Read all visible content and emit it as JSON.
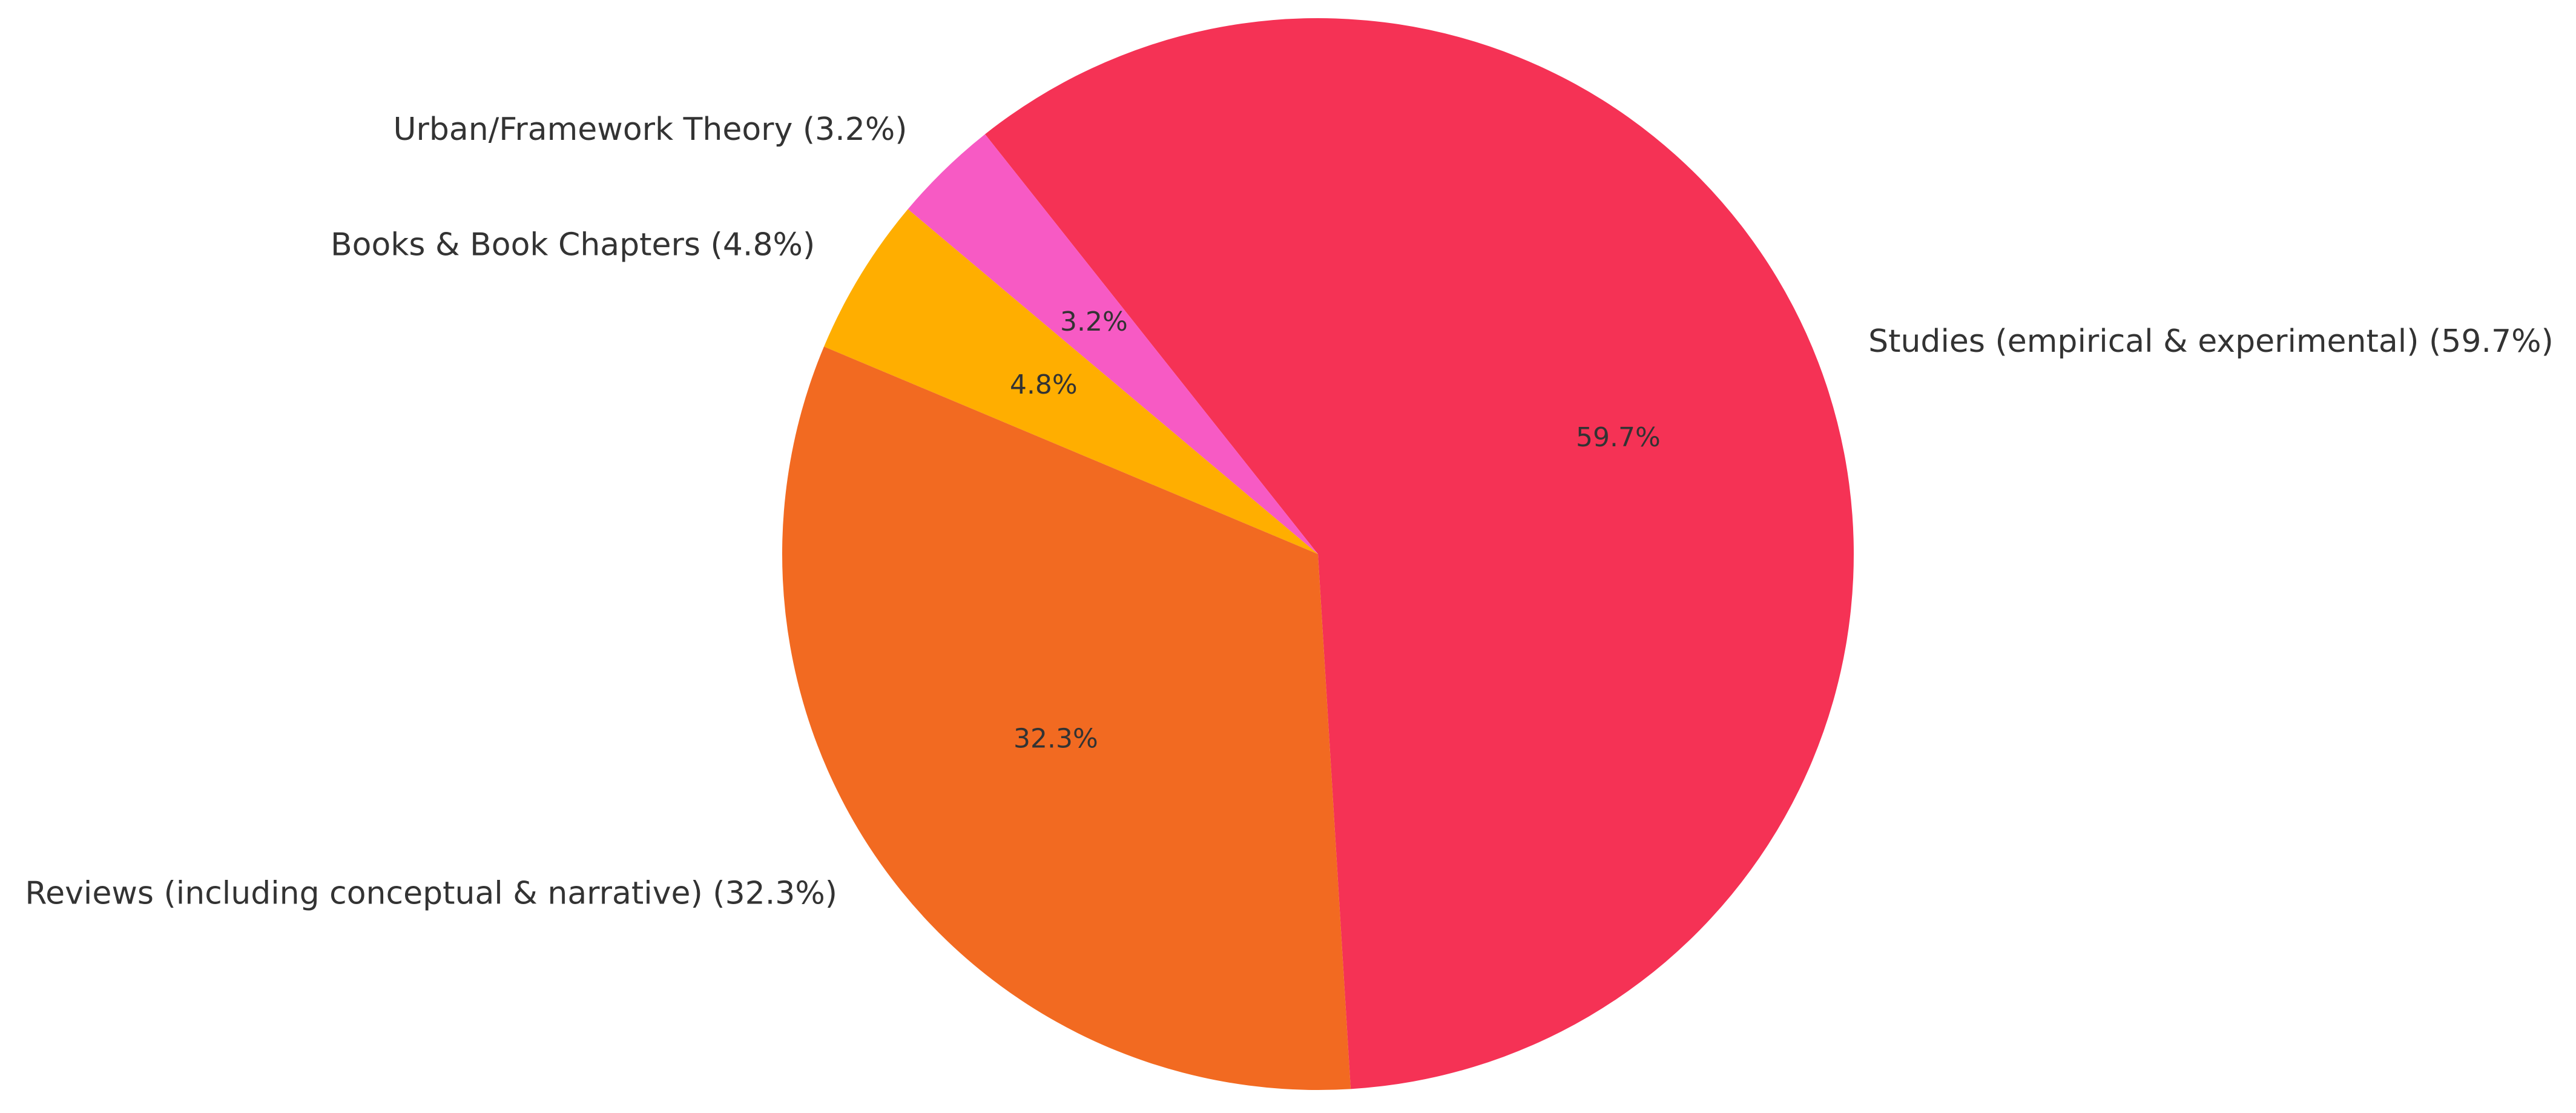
{
  "chart_data": {
    "type": "pie",
    "labels": [
      "Studies (empirical & experimental) (59.7%)",
      "Urban/Framework Theory (3.2%)",
      "Books & Book Chapters (4.8%)",
      "Reviews (including conceptual & narrative) (32.3%)"
    ],
    "values": [
      59.7,
      3.2,
      4.8,
      32.3
    ],
    "value_labels": [
      "59.7%",
      "3.2%",
      "4.8%",
      "32.3%"
    ],
    "colors": [
      "#f53255",
      "#f75ac4",
      "#ffae00",
      "#f26a21"
    ]
  }
}
